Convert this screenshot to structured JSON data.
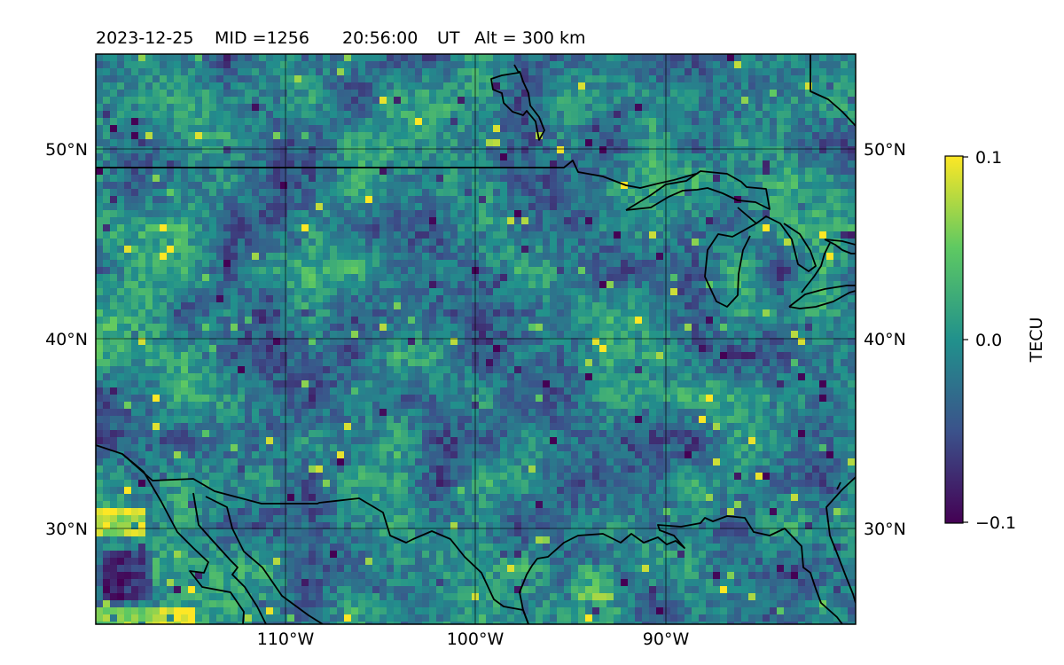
{
  "header": {
    "date": "2023-12-25",
    "mid": "MID =1256",
    "time": "20:56:00",
    "ut": "UT",
    "alt": "Alt = 300 km"
  },
  "map": {
    "lon_range": [
      -120,
      -80
    ],
    "lat_range": [
      25,
      55
    ],
    "lon_ticks": [
      {
        "value": -110,
        "label": "110°W"
      },
      {
        "value": -100,
        "label": "100°W"
      },
      {
        "value": -90,
        "label": "90°W"
      }
    ],
    "lat_ticks": [
      {
        "value": 50,
        "label": "50°N"
      },
      {
        "value": 40,
        "label": "40°N"
      },
      {
        "value": 30,
        "label": "30°N"
      }
    ],
    "grid": true,
    "colormap": "viridis"
  },
  "colorbar": {
    "label": "TECU",
    "ticks": [
      {
        "value": 0.1,
        "label": "0.1"
      },
      {
        "value": 0.0,
        "label": "0.0"
      },
      {
        "value": -0.1,
        "label": "−0.1"
      }
    ],
    "range": [
      -0.1,
      0.1
    ]
  },
  "colors": {
    "viridis_stops": [
      "#440154",
      "#3b528b",
      "#21918c",
      "#5ec962",
      "#fde725"
    ],
    "coastline": "#000000",
    "grid": "#000000"
  }
}
